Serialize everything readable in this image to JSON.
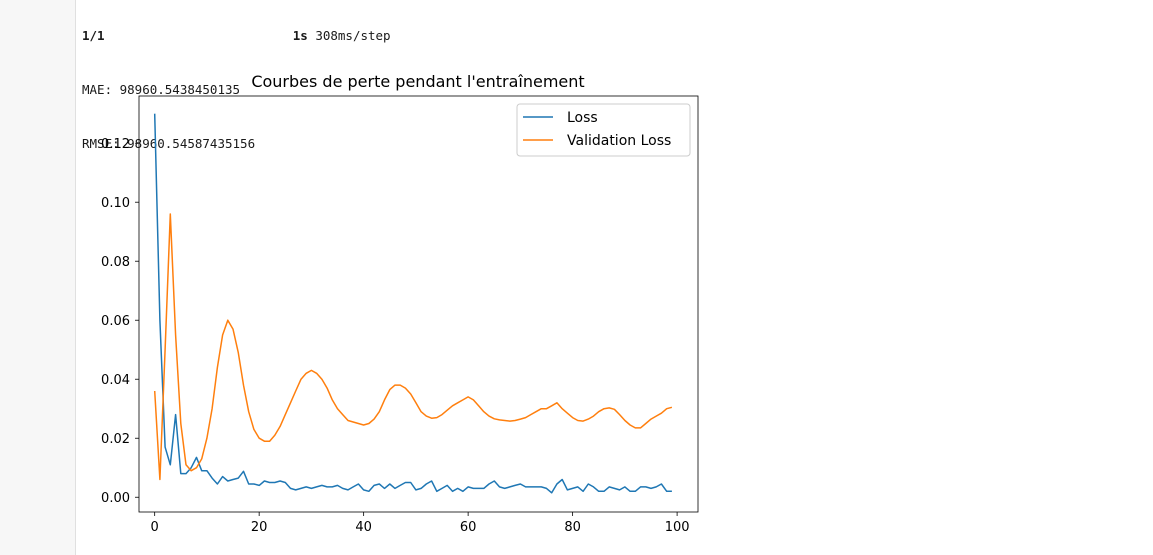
{
  "output": {
    "progress_prefix": "1/1",
    "progress_time": "1s",
    "progress_rate": "308ms/step",
    "mae": "MAE: 98960.5438450135",
    "rmse": "RMSE: 98960.54587435156"
  },
  "chart_data": {
    "type": "line",
    "title": "Courbes de perte pendant l'entraînement",
    "xlabel": "",
    "ylabel": "",
    "xlim": [
      -3,
      104
    ],
    "ylim": [
      -0.005,
      0.136
    ],
    "xticks": [
      0,
      20,
      40,
      60,
      80,
      100
    ],
    "xtick_labels": [
      "0",
      "20",
      "40",
      "60",
      "80",
      "100"
    ],
    "yticks": [
      0.0,
      0.02,
      0.04,
      0.06,
      0.08,
      0.1,
      0.12
    ],
    "ytick_labels": [
      "0.00",
      "0.02",
      "0.04",
      "0.06",
      "0.08",
      "0.10",
      "0.12"
    ],
    "grid": false,
    "legend": "upper right",
    "series": [
      {
        "name": "Loss",
        "color": "#1f77b4",
        "x": [
          0,
          1,
          2,
          3,
          4,
          5,
          6,
          7,
          8,
          9,
          10,
          11,
          12,
          13,
          14,
          15,
          16,
          17,
          18,
          19,
          20,
          21,
          22,
          23,
          24,
          25,
          26,
          27,
          28,
          29,
          30,
          31,
          32,
          33,
          34,
          35,
          36,
          37,
          38,
          39,
          40,
          41,
          42,
          43,
          44,
          45,
          46,
          47,
          48,
          49,
          50,
          51,
          52,
          53,
          54,
          55,
          56,
          57,
          58,
          59,
          60,
          61,
          62,
          63,
          64,
          65,
          66,
          67,
          68,
          69,
          70,
          71,
          72,
          73,
          74,
          75,
          76,
          77,
          78,
          79,
          80,
          81,
          82,
          83,
          84,
          85,
          86,
          87,
          88,
          89,
          90,
          91,
          92,
          93,
          94,
          95,
          96,
          97,
          98,
          99
        ],
        "values": [
          0.13,
          0.06,
          0.017,
          0.011,
          0.028,
          0.008,
          0.008,
          0.01,
          0.0135,
          0.009,
          0.009,
          0.0065,
          0.0045,
          0.007,
          0.0055,
          0.006,
          0.0065,
          0.0088,
          0.0045,
          0.0045,
          0.004,
          0.0055,
          0.005,
          0.005,
          0.0055,
          0.005,
          0.003,
          0.0025,
          0.003,
          0.0035,
          0.003,
          0.0035,
          0.004,
          0.0035,
          0.0035,
          0.004,
          0.003,
          0.0025,
          0.0035,
          0.0045,
          0.0025,
          0.002,
          0.004,
          0.0045,
          0.003,
          0.0045,
          0.003,
          0.004,
          0.005,
          0.005,
          0.0025,
          0.003,
          0.0045,
          0.0055,
          0.002,
          0.003,
          0.004,
          0.002,
          0.003,
          0.002,
          0.0035,
          0.003,
          0.003,
          0.003,
          0.0045,
          0.0055,
          0.0035,
          0.003,
          0.0035,
          0.004,
          0.0045,
          0.0035,
          0.0035,
          0.0035,
          0.0035,
          0.003,
          0.0015,
          0.0045,
          0.006,
          0.0025,
          0.003,
          0.0035,
          0.002,
          0.0045,
          0.0035,
          0.002,
          0.002,
          0.0035,
          0.003,
          0.0025,
          0.0035,
          0.002,
          0.002,
          0.0035,
          0.0035,
          0.003,
          0.0035,
          0.0045,
          0.002,
          0.002
        ]
      },
      {
        "name": "Validation Loss",
        "color": "#ff7f0e",
        "x": [
          0,
          1,
          2,
          3,
          4,
          5,
          6,
          7,
          8,
          9,
          10,
          11,
          12,
          13,
          14,
          15,
          16,
          17,
          18,
          19,
          20,
          21,
          22,
          23,
          24,
          25,
          26,
          27,
          28,
          29,
          30,
          31,
          32,
          33,
          34,
          35,
          36,
          37,
          38,
          39,
          40,
          41,
          42,
          43,
          44,
          45,
          46,
          47,
          48,
          49,
          50,
          51,
          52,
          53,
          54,
          55,
          56,
          57,
          58,
          59,
          60,
          61,
          62,
          63,
          64,
          65,
          66,
          67,
          68,
          69,
          70,
          71,
          72,
          73,
          74,
          75,
          76,
          77,
          78,
          79,
          80,
          81,
          82,
          83,
          84,
          85,
          86,
          87,
          88,
          89,
          90,
          91,
          92,
          93,
          94,
          95,
          96,
          97,
          98,
          99
        ],
        "values": [
          0.036,
          0.006,
          0.05,
          0.096,
          0.055,
          0.025,
          0.011,
          0.009,
          0.01,
          0.013,
          0.02,
          0.03,
          0.044,
          0.055,
          0.06,
          0.057,
          0.049,
          0.038,
          0.029,
          0.023,
          0.02,
          0.019,
          0.019,
          0.021,
          0.024,
          0.028,
          0.032,
          0.036,
          0.04,
          0.042,
          0.043,
          0.042,
          0.04,
          0.037,
          0.033,
          0.03,
          0.028,
          0.026,
          0.0255,
          0.025,
          0.0245,
          0.025,
          0.0265,
          0.029,
          0.033,
          0.0365,
          0.038,
          0.038,
          0.037,
          0.035,
          0.032,
          0.029,
          0.0275,
          0.0268,
          0.027,
          0.028,
          0.0295,
          0.031,
          0.032,
          0.033,
          0.034,
          0.033,
          0.031,
          0.029,
          0.0275,
          0.0266,
          0.0262,
          0.026,
          0.0258,
          0.026,
          0.0265,
          0.027,
          0.028,
          0.029,
          0.03,
          0.03,
          0.031,
          0.032,
          0.03,
          0.0285,
          0.027,
          0.026,
          0.0258,
          0.0265,
          0.0275,
          0.029,
          0.03,
          0.0303,
          0.0298,
          0.028,
          0.026,
          0.0245,
          0.0235,
          0.0235,
          0.025,
          0.0265,
          0.0275,
          0.0285,
          0.03,
          0.0305
        ]
      }
    ]
  }
}
